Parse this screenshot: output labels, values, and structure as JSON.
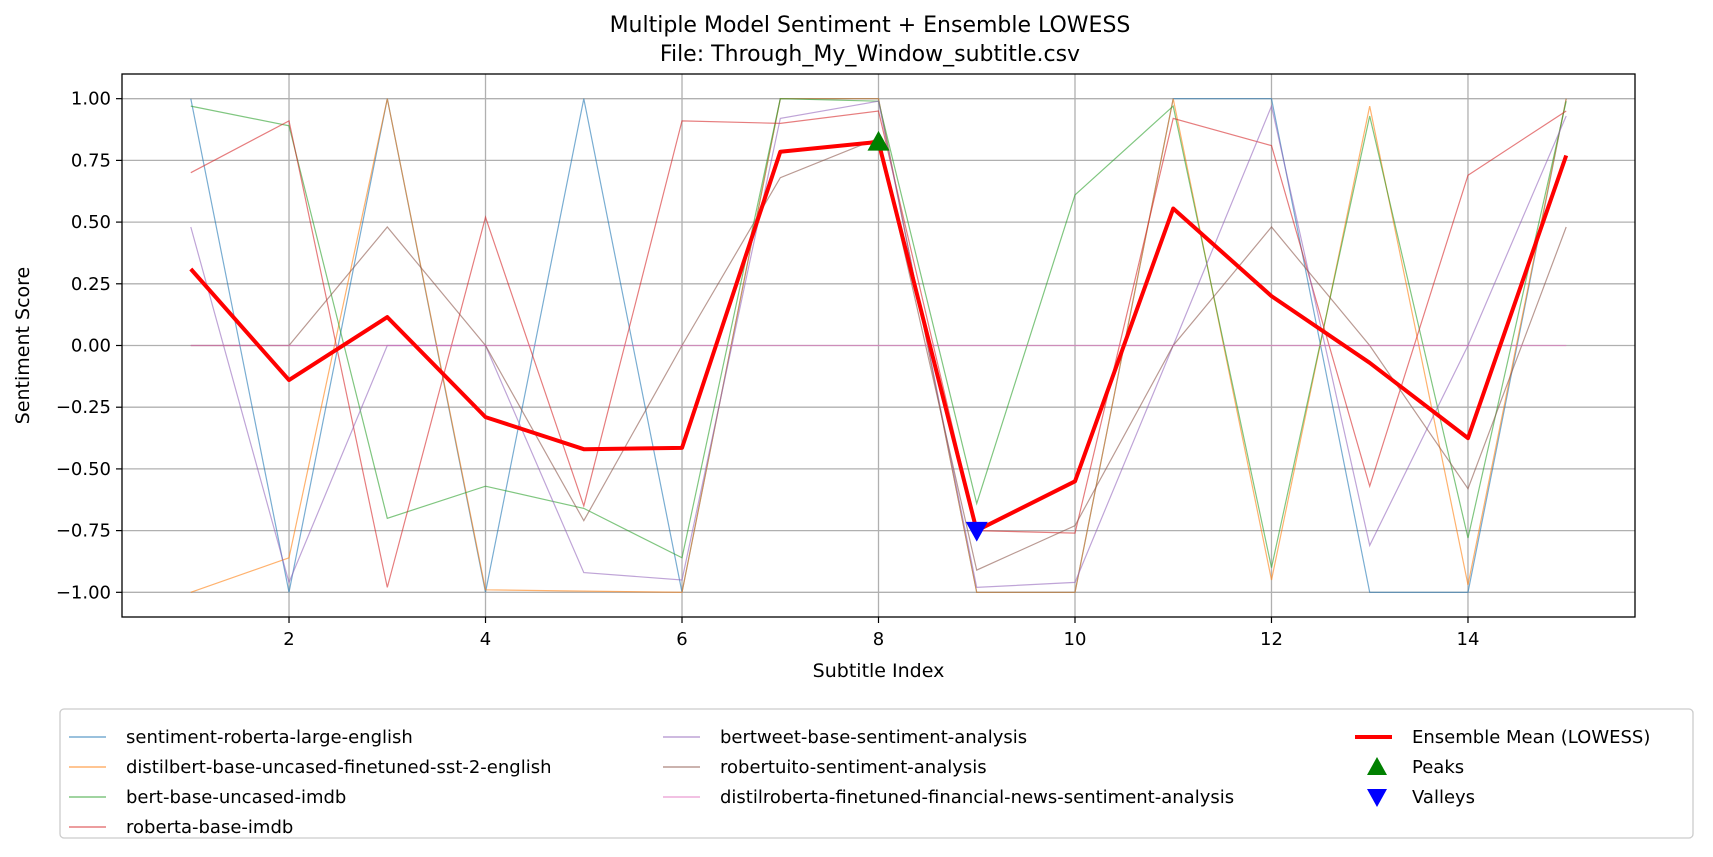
{
  "chart_data": {
    "type": "line",
    "title": "Multiple Model Sentiment + Ensemble LOWESS",
    "subtitle": "File: Through_My_Window_subtitle.csv",
    "xlabel": "Subtitle Index",
    "ylabel": "Sentiment Score",
    "x": [
      1,
      2,
      3,
      4,
      5,
      6,
      7,
      8,
      9,
      10,
      11,
      12,
      13,
      14,
      15
    ],
    "xticks": [
      2,
      4,
      6,
      8,
      10,
      12,
      14
    ],
    "xtick_labels": [
      "2",
      "4",
      "6",
      "8",
      "10",
      "12",
      "14"
    ],
    "yticks": [
      1.0,
      0.75,
      0.5,
      0.25,
      0.0,
      -0.25,
      -0.5,
      -0.75,
      -1.0
    ],
    "ytick_labels": [
      "1.00",
      "0.75",
      "0.50",
      "0.25",
      "0.00",
      "−0.25",
      "−0.50",
      "−0.75",
      "−1.00"
    ],
    "xlim": [
      0.3,
      15.7
    ],
    "ylim": [
      -1.1,
      1.1
    ],
    "grid": true,
    "legend_position": "bottom",
    "series": [
      {
        "name": "sentiment-roberta-large-english",
        "color": "#1f77b4",
        "values": [
          1.0,
          -1.0,
          1.0,
          -1.0,
          1.0,
          -1.0,
          1.0,
          1.0,
          -1.0,
          -1.0,
          1.0,
          1.0,
          -1.0,
          -1.0,
          1.0
        ]
      },
      {
        "name": "distilbert-base-uncased-finetuned-sst-2-english",
        "color": "#ff7f0e",
        "values": [
          -1.0,
          -0.86,
          1.0,
          -0.99,
          -0.995,
          -1.0,
          1.0,
          1.0,
          -1.0,
          -1.0,
          1.0,
          -0.95,
          0.97,
          -0.97,
          1.0
        ]
      },
      {
        "name": "bert-base-uncased-imdb",
        "color": "#2ca02c",
        "values": [
          0.97,
          0.89,
          -0.7,
          -0.57,
          -0.66,
          -0.86,
          1.0,
          0.99,
          -0.64,
          0.61,
          0.97,
          -0.9,
          0.93,
          -0.78,
          0.99
        ]
      },
      {
        "name": "roberta-base-imdb",
        "color": "#d62728",
        "values": [
          0.7,
          0.91,
          -0.98,
          0.52,
          -0.65,
          0.91,
          0.9,
          0.95,
          -0.75,
          -0.76,
          0.92,
          0.81,
          -0.57,
          0.69,
          0.95
        ]
      },
      {
        "name": "bertweet-base-sentiment-analysis",
        "color": "#9467bd",
        "values": [
          0.48,
          -0.96,
          0.0,
          0.0,
          -0.92,
          -0.95,
          0.92,
          0.99,
          -0.98,
          -0.96,
          0.0,
          0.97,
          -0.81,
          0.0,
          0.93
        ]
      },
      {
        "name": "robertuito-sentiment-analysis",
        "color": "#8c564b",
        "values": [
          0.0,
          0.0,
          0.48,
          0.0,
          -0.71,
          0.0,
          0.68,
          0.84,
          -0.91,
          -0.73,
          0.0,
          0.48,
          0.0,
          -0.58,
          0.48
        ]
      },
      {
        "name": "distilroberta-finetuned-financial-news-sentiment-analysis",
        "color": "#e377c2",
        "values": [
          0.0,
          0.0,
          0.0,
          0.0,
          0.0,
          0.0,
          0.0,
          0.0,
          0.0,
          0.0,
          0.0,
          0.0,
          0.0,
          0.0,
          0.0
        ]
      }
    ],
    "ensemble": {
      "name": "Ensemble Mean (LOWESS)",
      "color": "#ff0000",
      "values": [
        0.31,
        -0.14,
        0.115,
        -0.29,
        -0.42,
        -0.415,
        0.785,
        0.825,
        -0.75,
        -0.55,
        0.555,
        0.2,
        -0.07,
        -0.375,
        0.77
      ]
    },
    "peaks": {
      "name": "Peaks",
      "color": "#008000",
      "points": [
        {
          "x": 8,
          "y": 0.825
        }
      ]
    },
    "valleys": {
      "name": "Valleys",
      "color": "#0000ff",
      "points": [
        {
          "x": 9,
          "y": -0.75
        }
      ]
    }
  }
}
